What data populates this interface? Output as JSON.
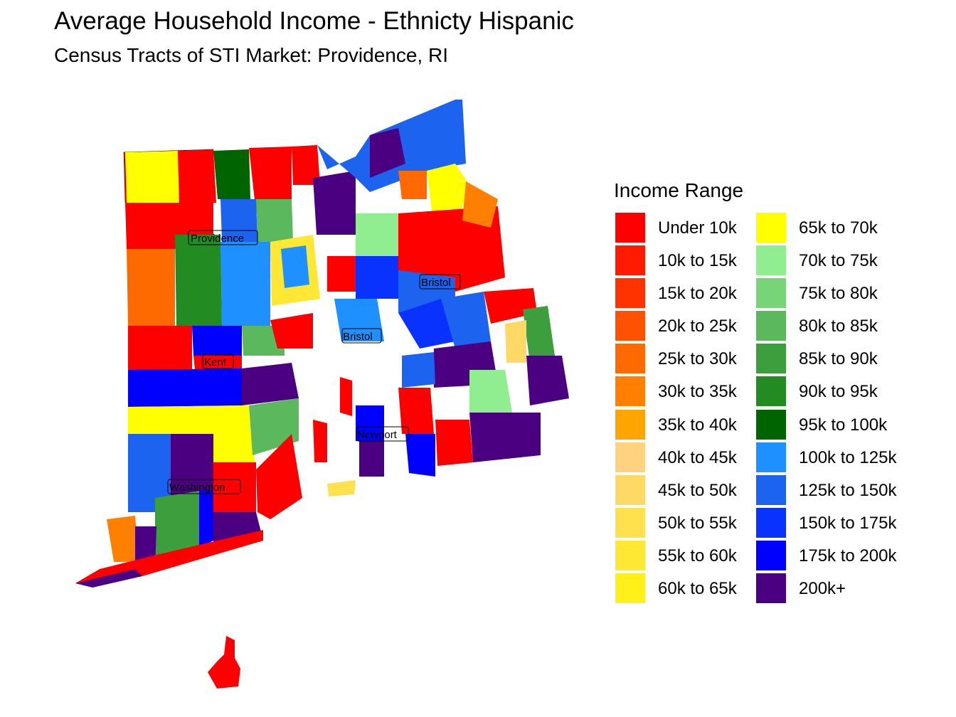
{
  "title": "Average Household Income - Ethnicty Hispanic",
  "subtitle": "Census Tracts of STI Market: Providence, RI",
  "legend": {
    "title": "Income Range",
    "items": [
      {
        "label": "Under 10k",
        "color": "#FF0000"
      },
      {
        "label": "10k to 15k",
        "color": "#FF1A00"
      },
      {
        "label": "15k to 20k",
        "color": "#FF3300"
      },
      {
        "label": "20k to 25k",
        "color": "#FF5200"
      },
      {
        "label": "25k to 30k",
        "color": "#FF6A00"
      },
      {
        "label": "30k to 35k",
        "color": "#FF8000"
      },
      {
        "label": "35k to 40k",
        "color": "#FFA500"
      },
      {
        "label": "40k to 45k",
        "color": "#FFD27F"
      },
      {
        "label": "45k to 50k",
        "color": "#FFD966"
      },
      {
        "label": "50k to 55k",
        "color": "#FFE14D"
      },
      {
        "label": "55k to 60k",
        "color": "#FFE833"
      },
      {
        "label": "60k to 65k",
        "color": "#FFF01A"
      },
      {
        "label": "65k to 70k",
        "color": "#FFFF00"
      },
      {
        "label": "70k to 75k",
        "color": "#90EE90"
      },
      {
        "label": "75k to 80k",
        "color": "#77D477"
      },
      {
        "label": "80k to 85k",
        "color": "#5CB85C"
      },
      {
        "label": "85k to 90k",
        "color": "#3C9E3C"
      },
      {
        "label": "90k to 95k",
        "color": "#228B22"
      },
      {
        "label": "95k to 100k",
        "color": "#006400"
      },
      {
        "label": "100k to 125k",
        "color": "#1E90FF"
      },
      {
        "label": "125k to 150k",
        "color": "#1C64F0"
      },
      {
        "label": "150k to 175k",
        "color": "#0A32FF"
      },
      {
        "label": "175k to 200k",
        "color": "#0000FF"
      },
      {
        "label": "200k+",
        "color": "#4B0082"
      }
    ]
  },
  "county_labels": [
    "Providence",
    "Bristol",
    "Bristol",
    "Kent",
    "Newport",
    "Washington"
  ]
}
